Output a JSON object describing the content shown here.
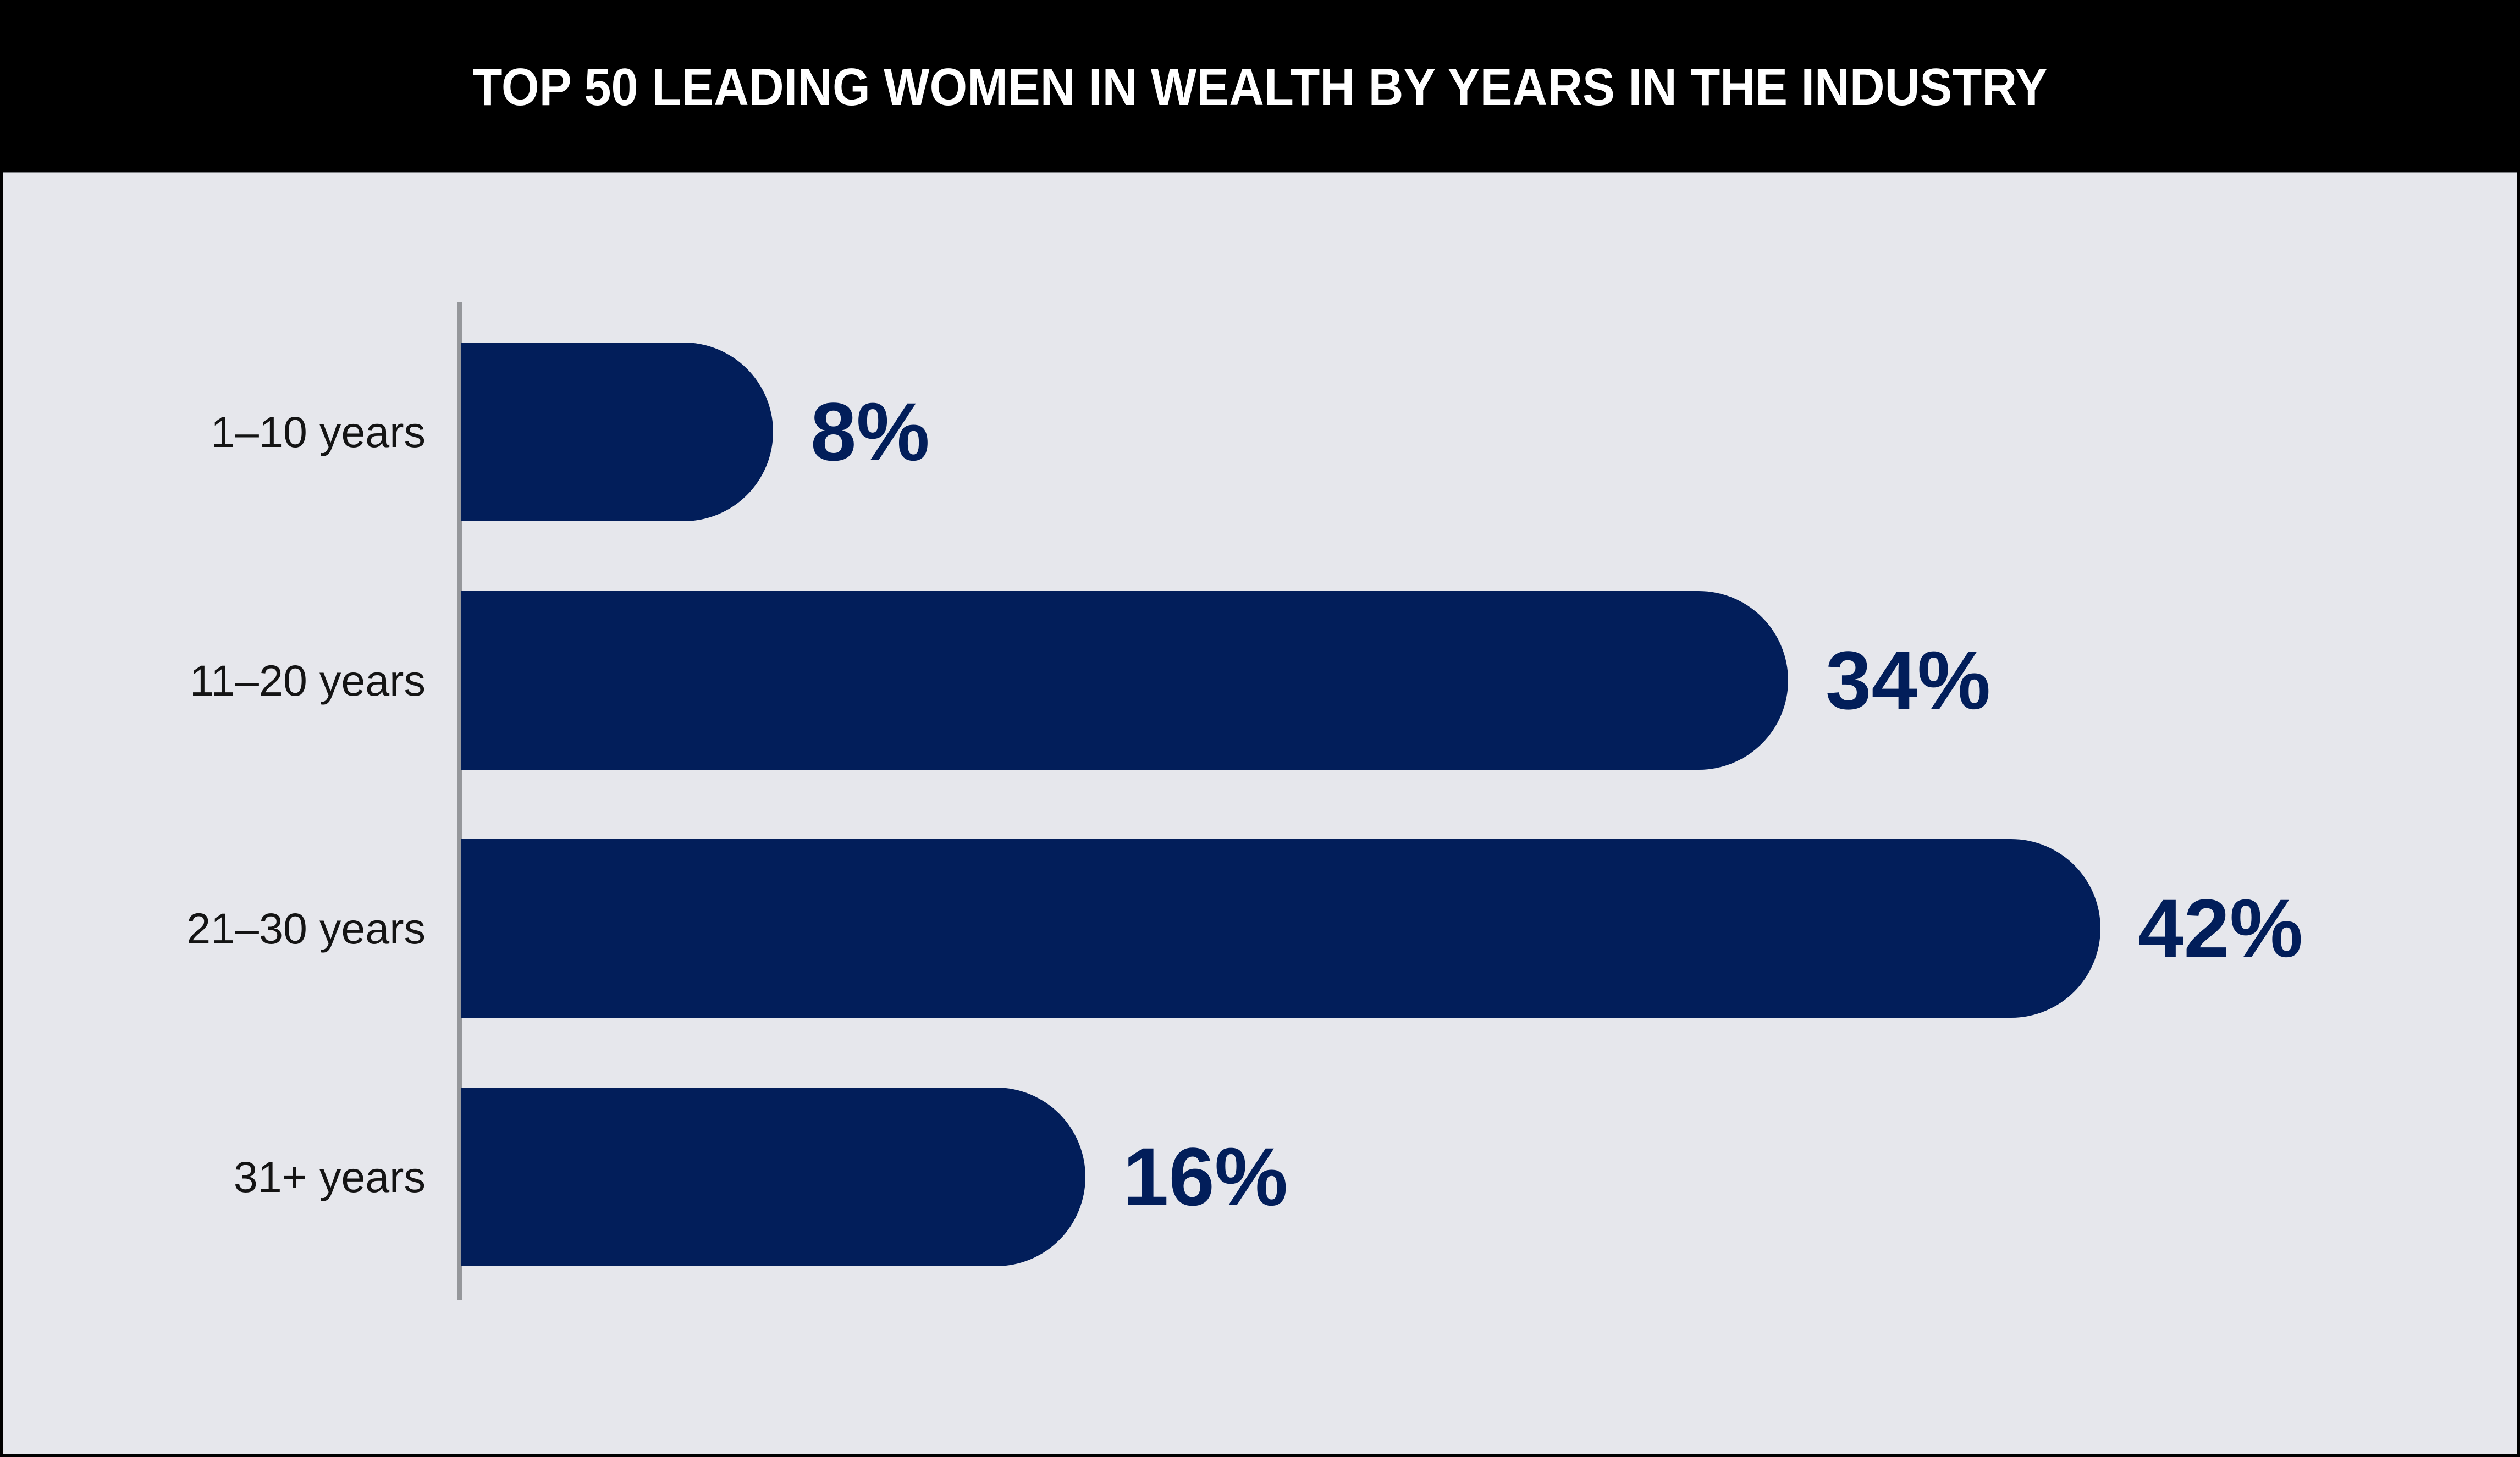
{
  "header": {
    "title": "TOP 50 LEADING WOMEN IN WEALTH BY YEARS IN THE INDUSTRY"
  },
  "chart_data": {
    "type": "bar",
    "orientation": "horizontal",
    "title": "TOP 50 LEADING WOMEN IN WEALTH BY YEARS IN THE INDUSTRY",
    "categories": [
      "1–10 years",
      "11–20 years",
      "21–30 years",
      "31+ years"
    ],
    "values": [
      8,
      34,
      42,
      16
    ],
    "value_labels": [
      "8%",
      "34%",
      "42%",
      "16%"
    ],
    "xlabel": "",
    "ylabel": "",
    "xlim": [
      0,
      45
    ],
    "grid": false,
    "legend": false,
    "colors": {
      "bar": "#021E5A",
      "value_label": "#021E5A",
      "category_label": "#141414",
      "background": "#E6E7EC",
      "header_background": "#000000",
      "header_text": "#FFFFFF",
      "axis_line": "#95979B",
      "page_border": "#000000"
    }
  }
}
